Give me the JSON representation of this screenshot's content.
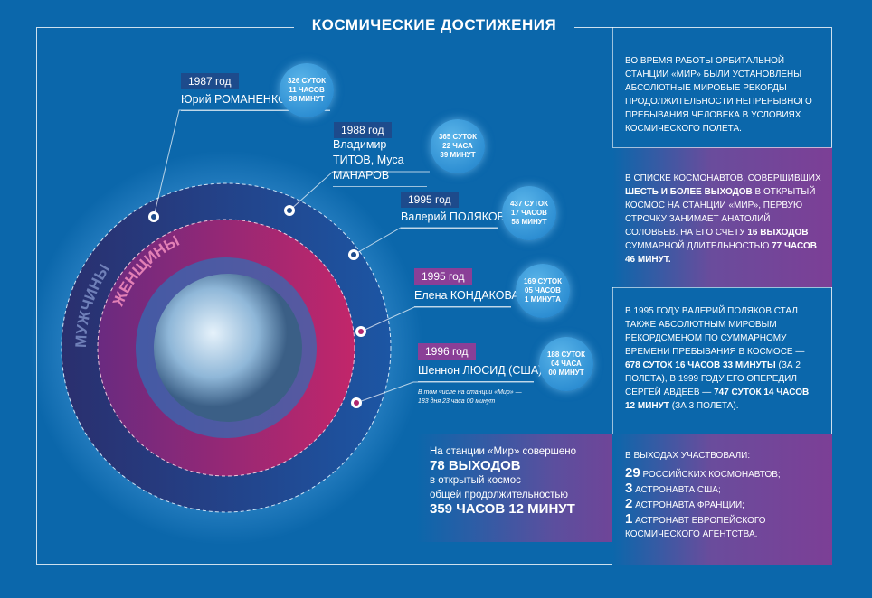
{
  "title": "КОСМИЧЕСКИЕ ДОСТИЖЕНИЯ",
  "rings": {
    "men": "МУЖЧИНЫ",
    "women": "ЖЕНЩИНЫ"
  },
  "records": [
    {
      "year": "1987 год",
      "name": "Юрий РОМАНЕНКО",
      "duration": [
        "326 СУТОК",
        "11 ЧАСОВ",
        "38 МИНУТ"
      ],
      "group": "men"
    },
    {
      "year": "1988 год",
      "name": "Владимир ТИТОВ, Муса МАНАРОВ",
      "duration": [
        "365 СУТОК",
        "22 ЧАСА",
        "39 МИНУТ"
      ],
      "group": "men"
    },
    {
      "year": "1995 год",
      "name": "Валерий ПОЛЯКОВ",
      "duration": [
        "437 СУТОК",
        "17 ЧАСОВ",
        "58 МИНУТ"
      ],
      "group": "men"
    },
    {
      "year": "1995 год",
      "name": "Елена КОНДАКОВА",
      "duration": [
        "169 СУТОК",
        "05 ЧАСОВ",
        "1 МИНУТА"
      ],
      "group": "women"
    },
    {
      "year": "1996 год",
      "name": "Шеннон ЛЮСИД (США)",
      "duration": [
        "188 СУТОК",
        "04 ЧАСА",
        "00 МИНУТ"
      ],
      "group": "women"
    }
  ],
  "lucid_note": "В том числе на станции «Мир» — 183 дня 23 часа 00 минут",
  "info": [
    {
      "text": "Во время работы орбитальной станции «Мир» были установлены абсолютные мировые рекорды продолжительности непрерывного пребывания человека в условиях космического полета."
    },
    {
      "t1": "В списке космонавтов, совершивших ",
      "b1": "шесть и более выходов",
      "t2": " в открытый космос на станции «Мир», первую строчку занимает Анатолий Соловьев. На его счету ",
      "b2": "16 выходов",
      "t3": " суммарной длительностью ",
      "b3": "77 часов 46 минут."
    },
    {
      "t1": "В 1995 году Валерий Поляков стал также абсолютным мировым рекордсменом по суммарному времени пребывания в космосе — ",
      "b1": "678 суток 16 часов 33 минуты",
      "t2": " (за 2 полета), в 1999 году его опередил Сергей Авдеев — ",
      "b2": "747 суток 14 часов 12 минут",
      "t3": " (за 3 полета)."
    }
  ],
  "spacewalks": {
    "l1": "На станции «Мир» совершено",
    "l2": "78 ВЫХОДОВ",
    "l3": "в открытый космос",
    "l4": "общей продолжительностью",
    "l5": "359 ЧАСОВ 12 МИНУТ"
  },
  "participants": {
    "title": "В выходах участвовали:",
    "items": [
      {
        "n": "29",
        "t": "российских космонавтов;"
      },
      {
        "n": "3",
        "t": "астронавта США;"
      },
      {
        "n": "2",
        "t": "астронавта Франции;"
      },
      {
        "n": "1",
        "t": "астронавт Европейского космического агентства."
      }
    ]
  },
  "colors": {
    "background": "#0b67ab",
    "men_ring": "#1d3f85",
    "women_ring": "#b0266f",
    "purple": "#7c3f96"
  }
}
